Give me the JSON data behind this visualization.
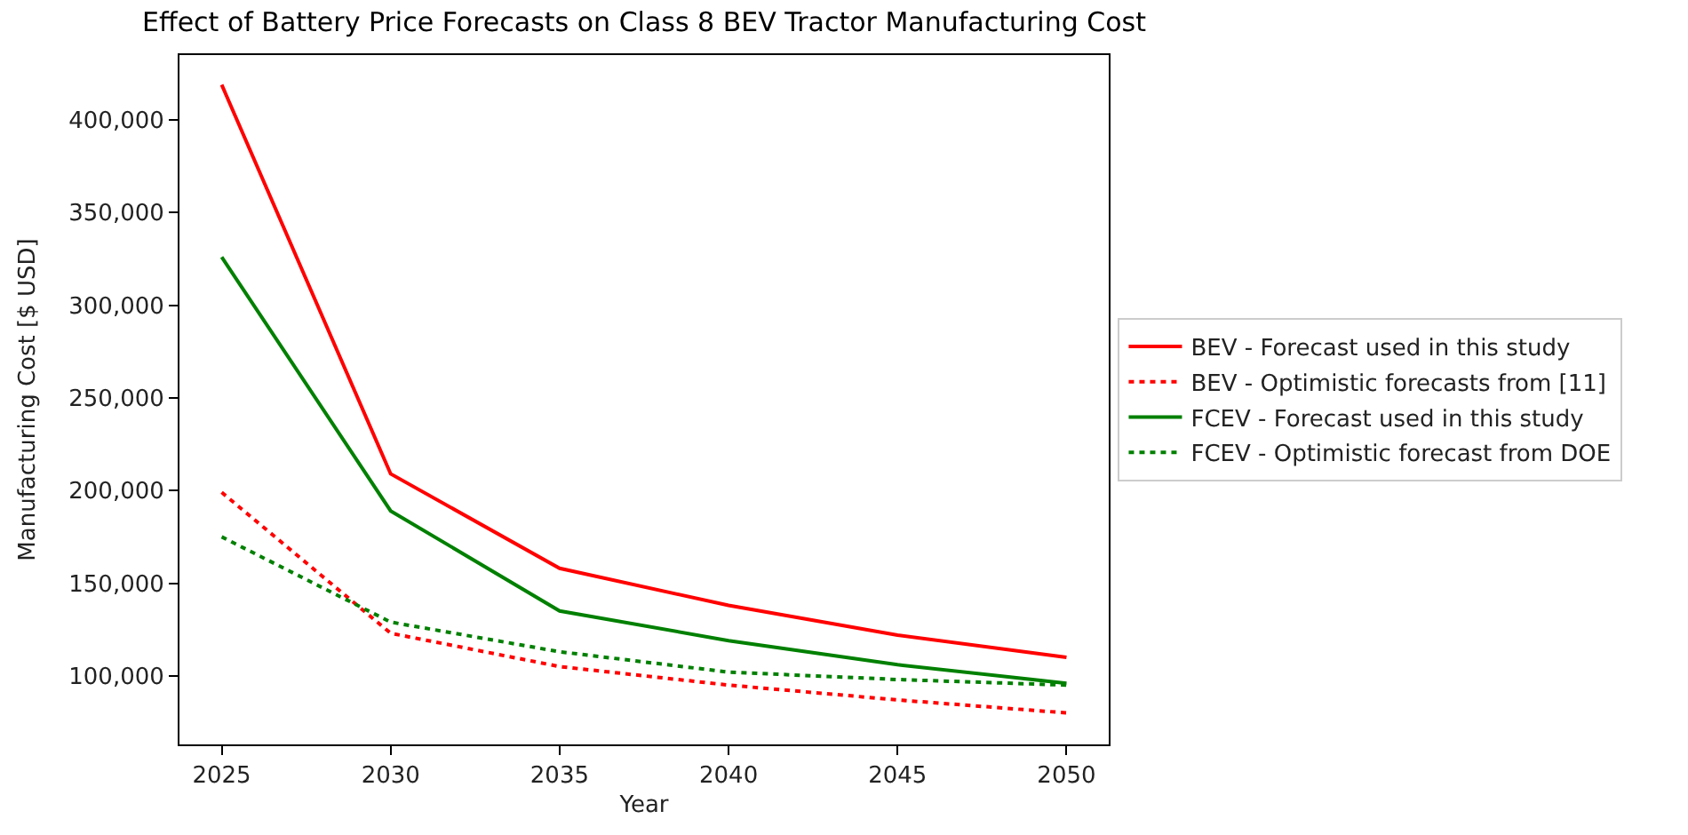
{
  "chart_data": {
    "type": "line",
    "title": "Effect of Battery Price Forecasts on Class 8 BEV Tractor Manufacturing Cost",
    "xlabel": "Year",
    "ylabel": "Manufacturing Cost [$ USD]",
    "x": [
      2025,
      2030,
      2035,
      2040,
      2045,
      2050
    ],
    "series": [
      {
        "name": "BEV - Forecast used in this study",
        "color": "#ff0000",
        "line_style": "solid",
        "values": [
          419000,
          209000,
          158000,
          138000,
          122000,
          110000
        ]
      },
      {
        "name": "BEV - Optimistic forecasts from [11]",
        "color": "#ff0000",
        "line_style": "dotted",
        "values": [
          199000,
          123000,
          105000,
          95000,
          87000,
          80000
        ]
      },
      {
        "name": "FCEV - Forecast used in this study",
        "color": "#008000",
        "line_style": "solid",
        "values": [
          326000,
          189000,
          135000,
          119000,
          106000,
          96000
        ]
      },
      {
        "name": "FCEV - Optimistic forecast from DOE",
        "color": "#008000",
        "line_style": "dotted",
        "values": [
          175000,
          129000,
          113000,
          102000,
          98000,
          95000
        ]
      }
    ],
    "xlim": [
      2023.75,
      2051.25
    ],
    "xticks": [
      2025,
      2030,
      2035,
      2040,
      2045,
      2050
    ],
    "ylim": [
      63000,
      435000
    ],
    "yticks": [
      {
        "value": 100000,
        "label": "100,000"
      },
      {
        "value": 150000,
        "label": "150,000"
      },
      {
        "value": 200000,
        "label": "200,000"
      },
      {
        "value": 250000,
        "label": "250,000"
      },
      {
        "value": 300000,
        "label": "300,000"
      },
      {
        "value": 350000,
        "label": "350,000"
      },
      {
        "value": 400000,
        "label": "400,000"
      }
    ],
    "legend": "right",
    "marker": "none"
  }
}
